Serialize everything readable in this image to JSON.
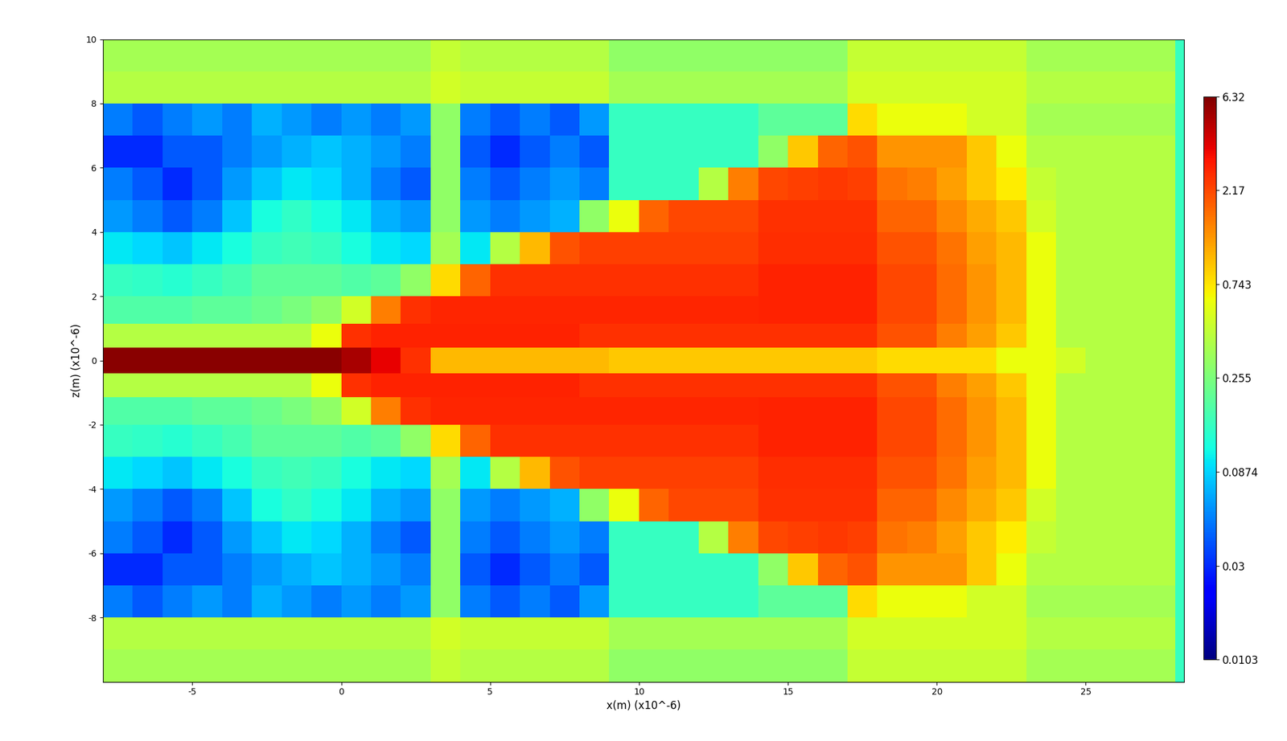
{
  "chart_data": {
    "type": "heatmap",
    "xlabel": "x(m) (x10^-6)",
    "ylabel": "z(m) (x10^-6)",
    "xlim": [
      -8,
      28.3
    ],
    "ylim": [
      -10,
      10
    ],
    "xticks": [
      -5,
      0,
      5,
      10,
      15,
      20,
      25
    ],
    "yticks": [
      -8,
      -6,
      -4,
      -2,
      0,
      2,
      4,
      6,
      8,
      10
    ],
    "colorbar_range": [
      0.0103,
      6.32
    ],
    "colorbar_ticks": [
      0.0103,
      0.03,
      0.0874,
      0.255,
      0.743,
      2.17,
      6.32
    ],
    "x": [
      -7.5,
      -6.5,
      -5.5,
      -4.5,
      -3.5,
      -2.5,
      -1.5,
      -0.5,
      0.5,
      1.5,
      2.5,
      3.5,
      4.5,
      5.5,
      6.5,
      7.5,
      8.5,
      9.5,
      10.5,
      11.5,
      12.5,
      13.5,
      14.5,
      15.5,
      16.5,
      17.5,
      18.5,
      19.5,
      20.5,
      21.5,
      22.5,
      23.5,
      24.5,
      25.5,
      26.5,
      27.5,
      28.5
    ],
    "z": [
      -9.5,
      -8.5,
      -7.5,
      -6.5,
      -5.5,
      -4.5,
      -3.5,
      -2.5,
      -1.5,
      -0.8,
      0,
      0.8,
      1.5,
      2.5,
      3.5,
      4.5,
      5.5,
      6.5,
      7.5,
      8.5,
      9.5
    ],
    "values": [
      [
        0.35,
        0.35,
        0.35,
        0.35,
        0.35,
        0.35,
        0.35,
        0.35,
        0.35,
        0.35,
        0.35,
        0.45,
        0.4,
        0.4,
        0.4,
        0.4,
        0.4,
        0.3,
        0.3,
        0.3,
        0.3,
        0.3,
        0.3,
        0.3,
        0.3,
        0.45,
        0.45,
        0.45,
        0.45,
        0.45,
        0.45,
        0.35,
        0.35,
        0.35,
        0.35,
        0.35,
        0.15
      ],
      [
        0.4,
        0.4,
        0.4,
        0.4,
        0.4,
        0.4,
        0.4,
        0.4,
        0.4,
        0.4,
        0.4,
        0.5,
        0.45,
        0.45,
        0.45,
        0.45,
        0.45,
        0.35,
        0.35,
        0.35,
        0.35,
        0.35,
        0.35,
        0.35,
        0.35,
        0.5,
        0.5,
        0.5,
        0.5,
        0.5,
        0.5,
        0.4,
        0.4,
        0.4,
        0.4,
        0.4,
        0.15
      ],
      [
        0.05,
        0.04,
        0.05,
        0.06,
        0.05,
        0.07,
        0.06,
        0.05,
        0.06,
        0.05,
        0.06,
        0.3,
        0.05,
        0.04,
        0.05,
        0.04,
        0.06,
        0.15,
        0.15,
        0.15,
        0.15,
        0.15,
        0.2,
        0.2,
        0.2,
        0.8,
        0.6,
        0.6,
        0.6,
        0.5,
        0.5,
        0.35,
        0.35,
        0.35,
        0.35,
        0.35,
        0.15
      ],
      [
        0.03,
        0.03,
        0.04,
        0.04,
        0.05,
        0.06,
        0.07,
        0.08,
        0.07,
        0.06,
        0.05,
        0.3,
        0.04,
        0.03,
        0.04,
        0.05,
        0.04,
        0.15,
        0.15,
        0.15,
        0.15,
        0.15,
        0.3,
        0.9,
        1.8,
        2.0,
        1.3,
        1.3,
        1.3,
        0.9,
        0.6,
        0.4,
        0.4,
        0.4,
        0.4,
        0.4,
        0.15
      ],
      [
        0.05,
        0.04,
        0.03,
        0.04,
        0.06,
        0.08,
        0.1,
        0.09,
        0.07,
        0.05,
        0.04,
        0.3,
        0.05,
        0.04,
        0.05,
        0.06,
        0.05,
        0.15,
        0.15,
        0.15,
        0.4,
        1.5,
        2.2,
        2.3,
        2.4,
        2.3,
        1.6,
        1.5,
        1.2,
        0.9,
        0.7,
        0.45,
        0.4,
        0.4,
        0.4,
        0.4,
        0.15
      ],
      [
        0.06,
        0.05,
        0.04,
        0.05,
        0.08,
        0.12,
        0.14,
        0.12,
        0.1,
        0.07,
        0.06,
        0.3,
        0.06,
        0.05,
        0.06,
        0.07,
        0.3,
        0.6,
        1.8,
        2.2,
        2.2,
        2.2,
        2.5,
        2.5,
        2.5,
        2.5,
        1.8,
        1.8,
        1.4,
        1.1,
        0.9,
        0.5,
        0.4,
        0.4,
        0.4,
        0.4,
        0.15
      ],
      [
        0.1,
        0.09,
        0.08,
        0.1,
        0.12,
        0.15,
        0.16,
        0.15,
        0.12,
        0.1,
        0.09,
        0.35,
        0.1,
        0.4,
        1.0,
        2.0,
        2.3,
        2.3,
        2.3,
        2.3,
        2.3,
        2.3,
        2.6,
        2.6,
        2.6,
        2.6,
        2.0,
        2.0,
        1.6,
        1.2,
        1.0,
        0.6,
        0.4,
        0.4,
        0.4,
        0.4,
        0.15
      ],
      [
        0.15,
        0.14,
        0.13,
        0.15,
        0.17,
        0.2,
        0.2,
        0.2,
        0.18,
        0.2,
        0.3,
        0.8,
        1.8,
        2.5,
        2.5,
        2.5,
        2.5,
        2.5,
        2.5,
        2.5,
        2.5,
        2.5,
        2.8,
        2.8,
        2.8,
        2.8,
        2.2,
        2.2,
        1.7,
        1.3,
        1.0,
        0.6,
        0.4,
        0.4,
        0.4,
        0.4,
        0.15
      ],
      [
        0.18,
        0.18,
        0.18,
        0.2,
        0.2,
        0.22,
        0.25,
        0.3,
        0.5,
        1.5,
        2.5,
        2.7,
        2.7,
        2.7,
        2.7,
        2.7,
        2.7,
        2.7,
        2.7,
        2.7,
        2.7,
        2.7,
        2.8,
        2.8,
        2.8,
        2.8,
        2.2,
        2.2,
        1.7,
        1.3,
        1.0,
        0.6,
        0.4,
        0.4,
        0.4,
        0.4,
        0.15
      ],
      [
        0.4,
        0.4,
        0.4,
        0.4,
        0.4,
        0.4,
        0.4,
        0.6,
        2.5,
        2.8,
        2.8,
        2.8,
        2.8,
        2.8,
        2.8,
        2.8,
        2.5,
        2.5,
        2.5,
        2.5,
        2.5,
        2.5,
        2.5,
        2.5,
        2.5,
        2.5,
        2.0,
        2.0,
        1.5,
        1.2,
        0.9,
        0.6,
        0.4,
        0.4,
        0.4,
        0.4,
        0.15
      ],
      [
        6.0,
        6.0,
        6.0,
        6.0,
        6.0,
        6.0,
        6.0,
        6.0,
        5.0,
        3.5,
        2.5,
        1.0,
        1.0,
        1.0,
        1.0,
        1.0,
        1.0,
        0.9,
        0.9,
        0.9,
        0.9,
        0.9,
        0.9,
        0.9,
        0.9,
        0.9,
        0.8,
        0.8,
        0.8,
        0.8,
        0.6,
        0.6,
        0.5,
        0.4,
        0.4,
        0.4,
        0.15
      ],
      [
        0.4,
        0.4,
        0.4,
        0.4,
        0.4,
        0.4,
        0.4,
        0.6,
        2.5,
        2.8,
        2.8,
        2.8,
        2.8,
        2.8,
        2.8,
        2.8,
        2.5,
        2.5,
        2.5,
        2.5,
        2.5,
        2.5,
        2.5,
        2.5,
        2.5,
        2.5,
        2.0,
        2.0,
        1.5,
        1.2,
        0.9,
        0.6,
        0.4,
        0.4,
        0.4,
        0.4,
        0.15
      ],
      [
        0.18,
        0.18,
        0.18,
        0.2,
        0.2,
        0.22,
        0.25,
        0.3,
        0.5,
        1.5,
        2.5,
        2.7,
        2.7,
        2.7,
        2.7,
        2.7,
        2.7,
        2.7,
        2.7,
        2.7,
        2.7,
        2.7,
        2.8,
        2.8,
        2.8,
        2.8,
        2.2,
        2.2,
        1.7,
        1.3,
        1.0,
        0.6,
        0.4,
        0.4,
        0.4,
        0.4,
        0.15
      ],
      [
        0.15,
        0.14,
        0.13,
        0.15,
        0.17,
        0.2,
        0.2,
        0.2,
        0.18,
        0.2,
        0.3,
        0.8,
        1.8,
        2.5,
        2.5,
        2.5,
        2.5,
        2.5,
        2.5,
        2.5,
        2.5,
        2.5,
        2.8,
        2.8,
        2.8,
        2.8,
        2.2,
        2.2,
        1.7,
        1.3,
        1.0,
        0.6,
        0.4,
        0.4,
        0.4,
        0.4,
        0.15
      ],
      [
        0.1,
        0.09,
        0.08,
        0.1,
        0.12,
        0.15,
        0.16,
        0.15,
        0.12,
        0.1,
        0.09,
        0.35,
        0.1,
        0.4,
        1.0,
        2.0,
        2.3,
        2.3,
        2.3,
        2.3,
        2.3,
        2.3,
        2.6,
        2.6,
        2.6,
        2.6,
        2.0,
        2.0,
        1.6,
        1.2,
        1.0,
        0.6,
        0.4,
        0.4,
        0.4,
        0.4,
        0.15
      ],
      [
        0.06,
        0.05,
        0.04,
        0.05,
        0.08,
        0.12,
        0.14,
        0.12,
        0.1,
        0.07,
        0.06,
        0.3,
        0.06,
        0.05,
        0.06,
        0.07,
        0.3,
        0.6,
        1.8,
        2.2,
        2.2,
        2.2,
        2.5,
        2.5,
        2.5,
        2.5,
        1.8,
        1.8,
        1.4,
        1.1,
        0.9,
        0.5,
        0.4,
        0.4,
        0.4,
        0.4,
        0.15
      ],
      [
        0.05,
        0.04,
        0.03,
        0.04,
        0.06,
        0.08,
        0.1,
        0.09,
        0.07,
        0.05,
        0.04,
        0.3,
        0.05,
        0.04,
        0.05,
        0.06,
        0.05,
        0.15,
        0.15,
        0.15,
        0.4,
        1.5,
        2.2,
        2.3,
        2.4,
        2.3,
        1.6,
        1.5,
        1.2,
        0.9,
        0.7,
        0.45,
        0.4,
        0.4,
        0.4,
        0.4,
        0.15
      ],
      [
        0.03,
        0.03,
        0.04,
        0.04,
        0.05,
        0.06,
        0.07,
        0.08,
        0.07,
        0.06,
        0.05,
        0.3,
        0.04,
        0.03,
        0.04,
        0.05,
        0.04,
        0.15,
        0.15,
        0.15,
        0.15,
        0.15,
        0.3,
        0.9,
        1.8,
        2.0,
        1.3,
        1.3,
        1.3,
        0.9,
        0.6,
        0.4,
        0.4,
        0.4,
        0.4,
        0.4,
        0.15
      ],
      [
        0.05,
        0.04,
        0.05,
        0.06,
        0.05,
        0.07,
        0.06,
        0.05,
        0.06,
        0.05,
        0.06,
        0.3,
        0.05,
        0.04,
        0.05,
        0.04,
        0.06,
        0.15,
        0.15,
        0.15,
        0.15,
        0.15,
        0.2,
        0.2,
        0.2,
        0.8,
        0.6,
        0.6,
        0.6,
        0.5,
        0.5,
        0.35,
        0.35,
        0.35,
        0.35,
        0.35,
        0.15
      ],
      [
        0.4,
        0.4,
        0.4,
        0.4,
        0.4,
        0.4,
        0.4,
        0.4,
        0.4,
        0.4,
        0.4,
        0.5,
        0.45,
        0.45,
        0.45,
        0.45,
        0.45,
        0.35,
        0.35,
        0.35,
        0.35,
        0.35,
        0.35,
        0.35,
        0.35,
        0.5,
        0.5,
        0.5,
        0.5,
        0.5,
        0.5,
        0.4,
        0.4,
        0.4,
        0.4,
        0.4,
        0.15
      ],
      [
        0.35,
        0.35,
        0.35,
        0.35,
        0.35,
        0.35,
        0.35,
        0.35,
        0.35,
        0.35,
        0.35,
        0.45,
        0.4,
        0.4,
        0.4,
        0.4,
        0.4,
        0.3,
        0.3,
        0.3,
        0.3,
        0.3,
        0.3,
        0.3,
        0.3,
        0.45,
        0.45,
        0.45,
        0.45,
        0.45,
        0.45,
        0.35,
        0.35,
        0.35,
        0.35,
        0.35,
        0.15
      ]
    ]
  }
}
